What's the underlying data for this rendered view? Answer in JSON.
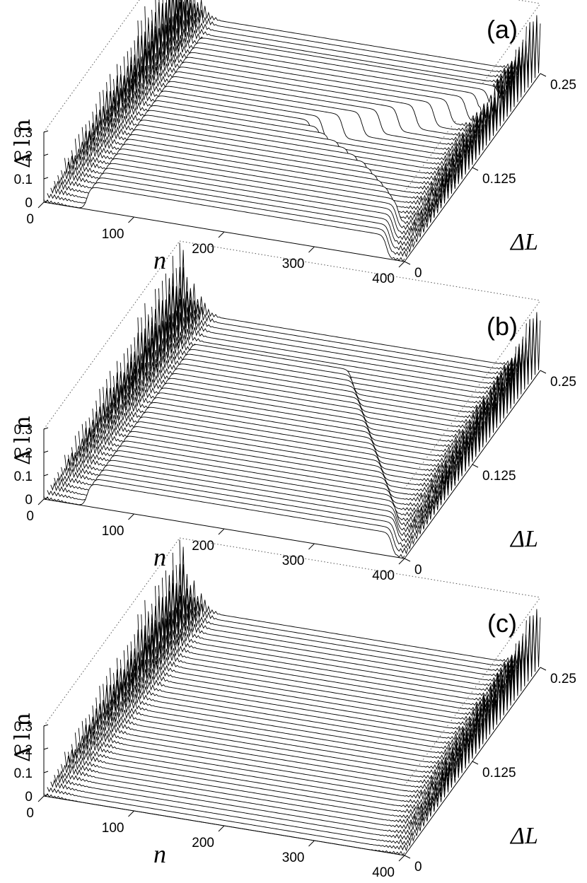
{
  "chart_data": [
    {
      "type": "line",
      "subtype": "3d-waterfall",
      "panel_label": "(a)",
      "xlabel": "n",
      "ylabel": "ΔL",
      "zlabel": "Δ l n",
      "x_ticks": [
        "0",
        "100",
        "200",
        "300",
        "400"
      ],
      "y_ticks": [
        "0",
        "0.125",
        "0.25"
      ],
      "z_ticks": [
        "0",
        "0.1",
        "0.2",
        "0.3"
      ],
      "xlim": [
        0,
        400
      ],
      "ylim": [
        0,
        0.25
      ],
      "zlim": [
        0,
        0.3
      ],
      "n_traces": 40,
      "boundary_spike_width_n": 50,
      "plateau_value": 0.1,
      "plateau_start_n": 48,
      "plateau_end_n": [
        380,
        378,
        376,
        374,
        372,
        370,
        368,
        366,
        358,
        350,
        340,
        330,
        320,
        310,
        296,
        282,
        268,
        252,
        238,
        224,
        232,
        250,
        268,
        284,
        300,
        316,
        332,
        346,
        360,
        370,
        378,
        386,
        0,
        0,
        0,
        0,
        0,
        0,
        0,
        0
      ]
    },
    {
      "type": "line",
      "subtype": "3d-waterfall",
      "panel_label": "(b)",
      "xlabel": "n",
      "ylabel": "ΔL",
      "zlabel": "Δ l n",
      "x_ticks": [
        "0",
        "100",
        "200",
        "300",
        "400"
      ],
      "y_ticks": [
        "0",
        "0.125",
        "0.25"
      ],
      "z_ticks": [
        "0",
        "0.1",
        "0.2",
        "0.3"
      ],
      "xlim": [
        0,
        400
      ],
      "ylim": [
        0,
        0.25
      ],
      "zlim": [
        0,
        0.3
      ],
      "n_traces": 40,
      "boundary_spike_width_n": 50,
      "plateau_value": 0.1,
      "plateau_start_n": 48,
      "plateau_end_n": [
        386,
        384,
        382,
        380,
        376,
        372,
        368,
        362,
        356,
        350,
        344,
        338,
        332,
        326,
        320,
        314,
        308,
        302,
        296,
        290,
        284,
        278,
        272,
        266,
        260,
        254,
        248,
        242,
        236,
        230,
        0,
        0,
        0,
        0,
        0,
        0,
        0,
        0,
        0,
        0
      ]
    },
    {
      "type": "line",
      "subtype": "3d-waterfall",
      "panel_label": "(c)",
      "xlabel": "n",
      "ylabel": "ΔL",
      "zlabel": "Δ l n",
      "x_ticks": [
        "0",
        "100",
        "200",
        "300",
        "400"
      ],
      "y_ticks": [
        "0",
        "0.125",
        "0.25"
      ],
      "z_ticks": [
        "0",
        "0.1",
        "0.2",
        "0.3"
      ],
      "xlim": [
        0,
        400
      ],
      "ylim": [
        0,
        0.25
      ],
      "zlim": [
        0,
        0.3
      ],
      "n_traces": 40,
      "boundary_spike_width_n": 50,
      "plateau_value": 0,
      "plateau_start_n": 48,
      "plateau_end_n": []
    }
  ]
}
